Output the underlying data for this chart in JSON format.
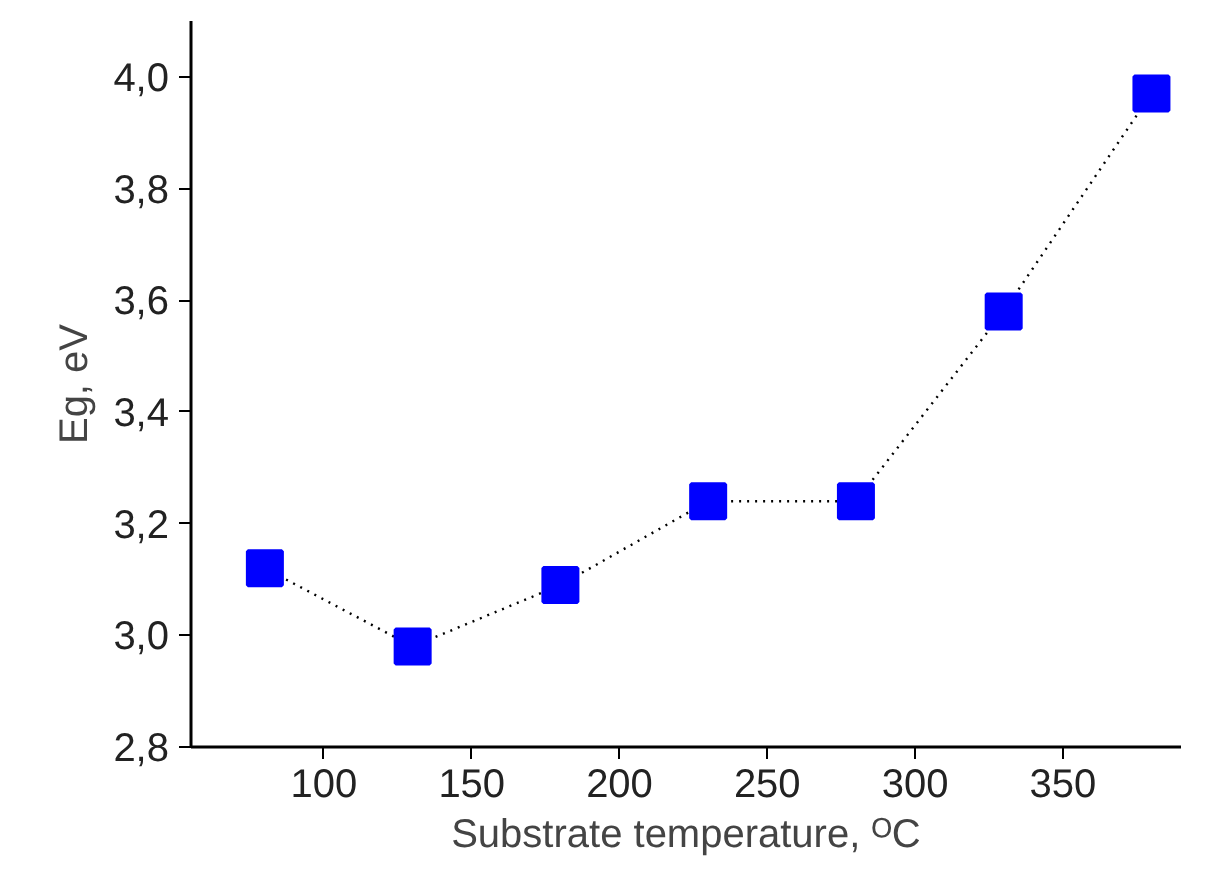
{
  "chart_data": {
    "type": "line",
    "xlabel": "Substrate temperature, ᴼC",
    "ylabel": "Eg, eV",
    "x": [
      80,
      130,
      180,
      230,
      280,
      330,
      380
    ],
    "series": [
      {
        "color": "#0000ff",
        "values": [
          3.12,
          2.98,
          3.09,
          3.24,
          3.24,
          3.58,
          3.97
        ]
      }
    ],
    "xlim": [
      55,
      390
    ],
    "xticks": [
      100,
      150,
      200,
      250,
      300,
      350
    ],
    "ylim": [
      2.8,
      4.1
    ],
    "yticks": [
      {
        "value": 2.8,
        "label": "2,8"
      },
      {
        "value": 3.0,
        "label": "3,0"
      },
      {
        "value": 3.2,
        "label": "3,2"
      },
      {
        "value": 3.4,
        "label": "3,4"
      },
      {
        "value": 3.6,
        "label": "3,6"
      },
      {
        "value": 3.8,
        "label": "3,8"
      },
      {
        "value": 4.0,
        "label": "4,0"
      }
    ],
    "marker": "square",
    "line_style": "dotted",
    "grid": false
  }
}
